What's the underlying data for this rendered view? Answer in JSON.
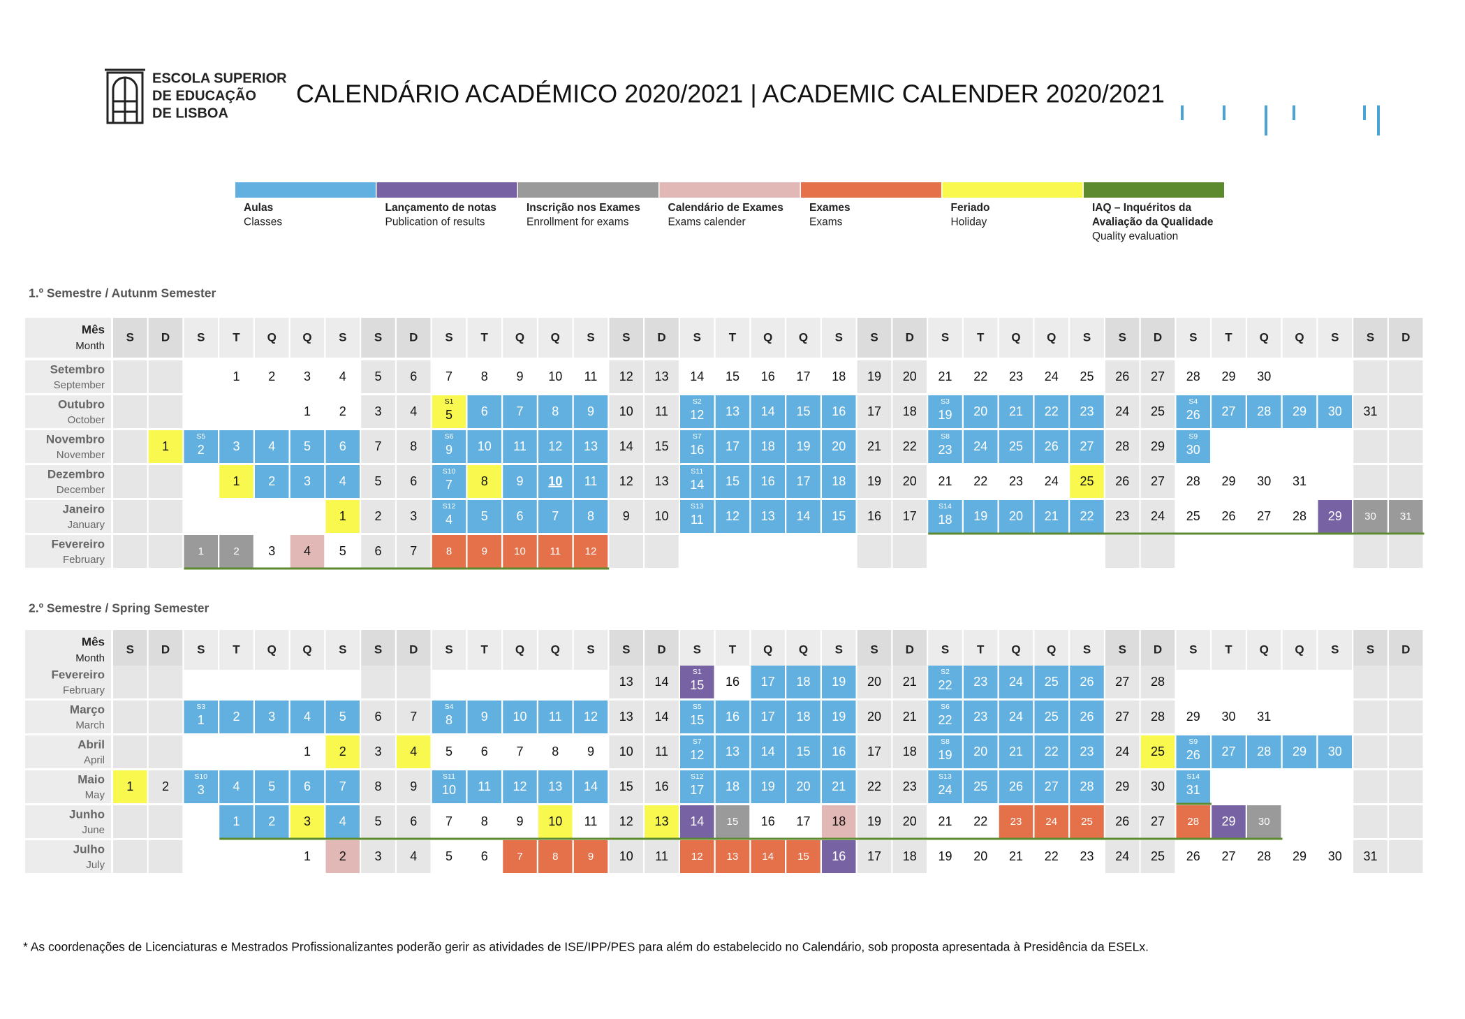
{
  "logo": [
    "ESCOLA SUPERIOR",
    "DE EDUCAÇÃO",
    "DE LISBOA"
  ],
  "title": "CALENDÁRIO ACADÉMICO 2020/2021 | ACADEMIC CALENDER 2020/2021",
  "legend": [
    {
      "key": "aulas",
      "pt": [
        "Aulas"
      ],
      "en": "Classes",
      "color": "#62b0e0"
    },
    {
      "key": "notas",
      "pt": [
        "Lançamento de notas"
      ],
      "en": "Publication of results",
      "color": "#7763a3"
    },
    {
      "key": "inscricao",
      "pt": [
        "Inscrição nos Exames"
      ],
      "en": "Enrollment for exams",
      "color": "#9a9a9a"
    },
    {
      "key": "calexames",
      "pt": [
        "Calendário de Exames"
      ],
      "en": "Exams calender",
      "color": "#e2b8b6"
    },
    {
      "key": "exames",
      "pt": [
        "Exames"
      ],
      "en": "Exams",
      "color": "#e4714a"
    },
    {
      "key": "feriado",
      "pt": [
        "Feriado"
      ],
      "en": "Holiday",
      "color": "#f8f84f"
    },
    {
      "key": "iaq",
      "pt": [
        "IAQ – Inquéritos da",
        "Avaliação da Qualidade"
      ],
      "en": "Quality evaluation",
      "color": "#5d8a2f"
    }
  ],
  "semesters": [
    {
      "title": "1.º Semestre / Autunm Semester",
      "header": {
        "pt": "Mês",
        "en": "Month",
        "days": [
          "S",
          "D",
          "S",
          "T",
          "Q",
          "Q",
          "S",
          "S",
          "D",
          "S",
          "T",
          "Q",
          "Q",
          "S",
          "S",
          "D",
          "S",
          "T",
          "Q",
          "Q",
          "S",
          "S",
          "D",
          "S",
          "T",
          "Q",
          "Q",
          "S",
          "S",
          "D",
          "S",
          "T",
          "Q",
          "Q",
          "S",
          "S",
          "D"
        ]
      },
      "months": [
        {
          "pt": "Setembro",
          "en": "September",
          "start": 3,
          "days": [
            1,
            2,
            3,
            4,
            5,
            6,
            7,
            8,
            9,
            10,
            11,
            12,
            13,
            14,
            15,
            16,
            17,
            18,
            19,
            20,
            21,
            22,
            23,
            24,
            25,
            26,
            27,
            28,
            29,
            30
          ],
          "marks": {},
          "weeks": []
        },
        {
          "pt": "Outubro",
          "en": "October",
          "start": 5,
          "days": [
            1,
            2,
            3,
            4,
            5,
            6,
            7,
            8,
            9,
            10,
            11,
            12,
            13,
            14,
            15,
            16,
            17,
            18,
            19,
            20,
            21,
            22,
            23,
            24,
            25,
            26,
            27,
            28,
            29,
            30,
            31
          ],
          "marks": {
            "feriado": [
              5
            ],
            "aulas": [
              6,
              7,
              8,
              9,
              12,
              13,
              14,
              15,
              16,
              19,
              20,
              21,
              22,
              23,
              26,
              27,
              28,
              29,
              30
            ]
          },
          "weeks": [
            {
              "day": 5,
              "label": "S1"
            },
            {
              "day": 12,
              "label": "S2"
            },
            {
              "day": 19,
              "label": "S3"
            },
            {
              "day": 26,
              "label": "S4"
            }
          ]
        },
        {
          "pt": "Novembro",
          "en": "November",
          "start": 1,
          "days": [
            1,
            2,
            3,
            4,
            5,
            6,
            7,
            8,
            9,
            10,
            11,
            12,
            13,
            14,
            15,
            16,
            17,
            18,
            19,
            20,
            21,
            22,
            23,
            24,
            25,
            26,
            27,
            28,
            29,
            30
          ],
          "marks": {
            "feriado": [
              1
            ],
            "aulas": [
              2,
              3,
              4,
              5,
              6,
              9,
              10,
              11,
              12,
              13,
              16,
              17,
              18,
              19,
              20,
              23,
              24,
              25,
              26,
              27,
              30
            ]
          },
          "weeks": [
            {
              "day": 2,
              "label": "S5"
            },
            {
              "day": 9,
              "label": "S6"
            },
            {
              "day": 16,
              "label": "S7"
            },
            {
              "day": 23,
              "label": "S8"
            },
            {
              "day": 30,
              "label": "S9"
            }
          ]
        },
        {
          "pt": "Dezembro",
          "en": "December",
          "start": 3,
          "days": [
            1,
            2,
            3,
            4,
            5,
            6,
            7,
            8,
            9,
            10,
            11,
            12,
            13,
            14,
            15,
            16,
            17,
            18,
            19,
            20,
            21,
            22,
            23,
            24,
            25,
            26,
            27,
            28,
            29,
            30,
            31
          ],
          "marks": {
            "feriado": [
              1,
              8,
              25
            ],
            "aulas": [
              2,
              3,
              4,
              7,
              9,
              10,
              11,
              14,
              15,
              16,
              17,
              18
            ]
          },
          "weeks": [
            {
              "day": 7,
              "label": "S10"
            },
            {
              "day": 14,
              "label": "S11"
            }
          ],
          "emphasis": [
            10
          ]
        },
        {
          "pt": "Janeiro",
          "en": "January",
          "start": 6,
          "days": [
            1,
            2,
            3,
            4,
            5,
            6,
            7,
            8,
            9,
            10,
            11,
            12,
            13,
            14,
            15,
            16,
            17,
            18,
            19,
            20,
            21,
            22,
            23,
            24,
            25,
            26,
            27,
            28,
            29,
            30,
            31
          ],
          "marks": {
            "feriado": [
              1
            ],
            "aulas": [
              4,
              5,
              6,
              7,
              8,
              11,
              12,
              13,
              14,
              15,
              18,
              19,
              20,
              21,
              22
            ],
            "notas": [
              29
            ],
            "inscricao": [
              30,
              31
            ]
          },
          "weeks": [
            {
              "day": 4,
              "label": "S12"
            },
            {
              "day": 11,
              "label": "S13"
            },
            {
              "day": 18,
              "label": "S14"
            }
          ],
          "iaq": [
            18,
            31
          ]
        },
        {
          "pt": "Fevereiro",
          "en": "February",
          "start": 2,
          "days": [
            1,
            2,
            3,
            4,
            5,
            6,
            7,
            8,
            9,
            10,
            11,
            12
          ],
          "marks": {
            "inscricao": [
              1,
              2
            ],
            "calexames": [
              4
            ],
            "exames": [
              8,
              9,
              10,
              11,
              12
            ]
          },
          "weeks": [],
          "iaq": [
            1,
            12
          ]
        }
      ]
    },
    {
      "title": "2.º Semestre / Spring Semester",
      "header": {
        "pt": "Mês",
        "en": "Month",
        "days": [
          "S",
          "D",
          "S",
          "T",
          "Q",
          "Q",
          "S",
          "S",
          "D",
          "S",
          "T",
          "Q",
          "Q",
          "S",
          "S",
          "D",
          "S",
          "T",
          "Q",
          "Q",
          "S",
          "S",
          "D",
          "S",
          "T",
          "Q",
          "Q",
          "S",
          "S",
          "D",
          "S",
          "T",
          "Q",
          "Q",
          "S",
          "S",
          "D"
        ]
      },
      "months": [
        {
          "pt": "Fevereiro",
          "en": "February",
          "start": 2,
          "days": [
            13,
            14,
            15,
            16,
            17,
            18,
            19,
            20,
            21,
            22,
            23,
            24,
            25,
            26,
            27,
            28
          ],
          "marks": {
            "notas": [
              15
            ],
            "aulas": [
              17,
              18,
              19,
              22,
              23,
              24,
              25,
              26
            ]
          },
          "weeks": [
            {
              "day": 15,
              "label": "S1"
            },
            {
              "day": 22,
              "label": "S2"
            }
          ]
        },
        {
          "pt": "Março",
          "en": "March",
          "start": 2,
          "days": [
            1,
            2,
            3,
            4,
            5,
            6,
            7,
            8,
            9,
            10,
            11,
            12,
            13,
            14,
            15,
            16,
            17,
            18,
            19,
            20,
            21,
            22,
            23,
            24,
            25,
            26,
            27,
            28,
            29,
            30,
            31
          ],
          "marks": {
            "aulas": [
              1,
              2,
              3,
              4,
              5,
              8,
              9,
              10,
              11,
              12,
              15,
              16,
              17,
              18,
              19,
              22,
              23,
              24,
              25,
              26
            ]
          },
          "weeks": [
            {
              "day": 1,
              "label": "S3"
            },
            {
              "day": 8,
              "label": "S4"
            },
            {
              "day": 15,
              "label": "S5"
            },
            {
              "day": 22,
              "label": "S6"
            }
          ]
        },
        {
          "pt": "Abril",
          "en": "April",
          "start": 5,
          "days": [
            1,
            2,
            3,
            4,
            5,
            6,
            7,
            8,
            9,
            10,
            11,
            12,
            13,
            14,
            15,
            16,
            17,
            18,
            19,
            20,
            21,
            22,
            23,
            24,
            25,
            26,
            27,
            28,
            29,
            30
          ],
          "marks": {
            "feriado": [
              2,
              4,
              25
            ],
            "aulas": [
              12,
              13,
              14,
              15,
              16,
              19,
              20,
              21,
              22,
              23,
              26,
              27,
              28,
              29,
              30
            ]
          },
          "weeks": [
            {
              "day": 12,
              "label": "S7"
            },
            {
              "day": 19,
              "label": "S8"
            },
            {
              "day": 26,
              "label": "S9"
            }
          ]
        },
        {
          "pt": "Maio",
          "en": "May",
          "start": 0,
          "days": [
            1,
            2,
            3,
            4,
            5,
            6,
            7,
            8,
            9,
            10,
            11,
            12,
            13,
            14,
            15,
            16,
            17,
            18,
            19,
            20,
            21,
            22,
            23,
            24,
            25,
            26,
            27,
            28,
            29,
            30,
            31
          ],
          "marks": {
            "feriado": [
              1
            ],
            "aulas": [
              3,
              4,
              5,
              6,
              7,
              10,
              11,
              12,
              13,
              14,
              17,
              18,
              19,
              20,
              21,
              24,
              25,
              26,
              27,
              28,
              31
            ]
          },
          "weeks": [
            {
              "day": 3,
              "label": "S10"
            },
            {
              "day": 10,
              "label": "S11"
            },
            {
              "day": 17,
              "label": "S12"
            },
            {
              "day": 24,
              "label": "S13"
            },
            {
              "day": 31,
              "label": "S14"
            }
          ],
          "iaq": [
            31,
            31
          ]
        },
        {
          "pt": "Junho",
          "en": "June",
          "start": 3,
          "days": [
            1,
            2,
            3,
            4,
            5,
            6,
            7,
            8,
            9,
            10,
            11,
            12,
            13,
            14,
            15,
            16,
            17,
            18,
            19,
            20,
            21,
            22,
            23,
            24,
            25,
            26,
            27,
            28,
            29,
            30
          ],
          "marks": {
            "aulas": [
              1,
              2,
              4
            ],
            "feriado": [
              3,
              10,
              13
            ],
            "notas": [
              14,
              29
            ],
            "inscricao": [
              15,
              30
            ],
            "calexames": [
              18
            ],
            "exames": [
              23,
              24,
              25,
              28
            ]
          },
          "weeks": [],
          "iaq": [
            1,
            30
          ]
        },
        {
          "pt": "Julho",
          "en": "July",
          "start": 5,
          "days": [
            1,
            2,
            3,
            4,
            5,
            6,
            7,
            8,
            9,
            10,
            11,
            12,
            13,
            14,
            15,
            16,
            17,
            18,
            19,
            20,
            21,
            22,
            23,
            24,
            25,
            26,
            27,
            28,
            29,
            30,
            31
          ],
          "marks": {
            "calexames": [
              2
            ],
            "exames": [
              7,
              8,
              9,
              12,
              13,
              14,
              15
            ],
            "notas": [
              16
            ]
          },
          "weeks": []
        }
      ]
    }
  ],
  "footnote": "* As coordenações de Licenciaturas e Mestrados Profissionalizantes poderão gerir as atividades de ISE/IPP/PES para além do estabelecido no Calendário, sob proposta apresentada à Presidência da ESELx."
}
